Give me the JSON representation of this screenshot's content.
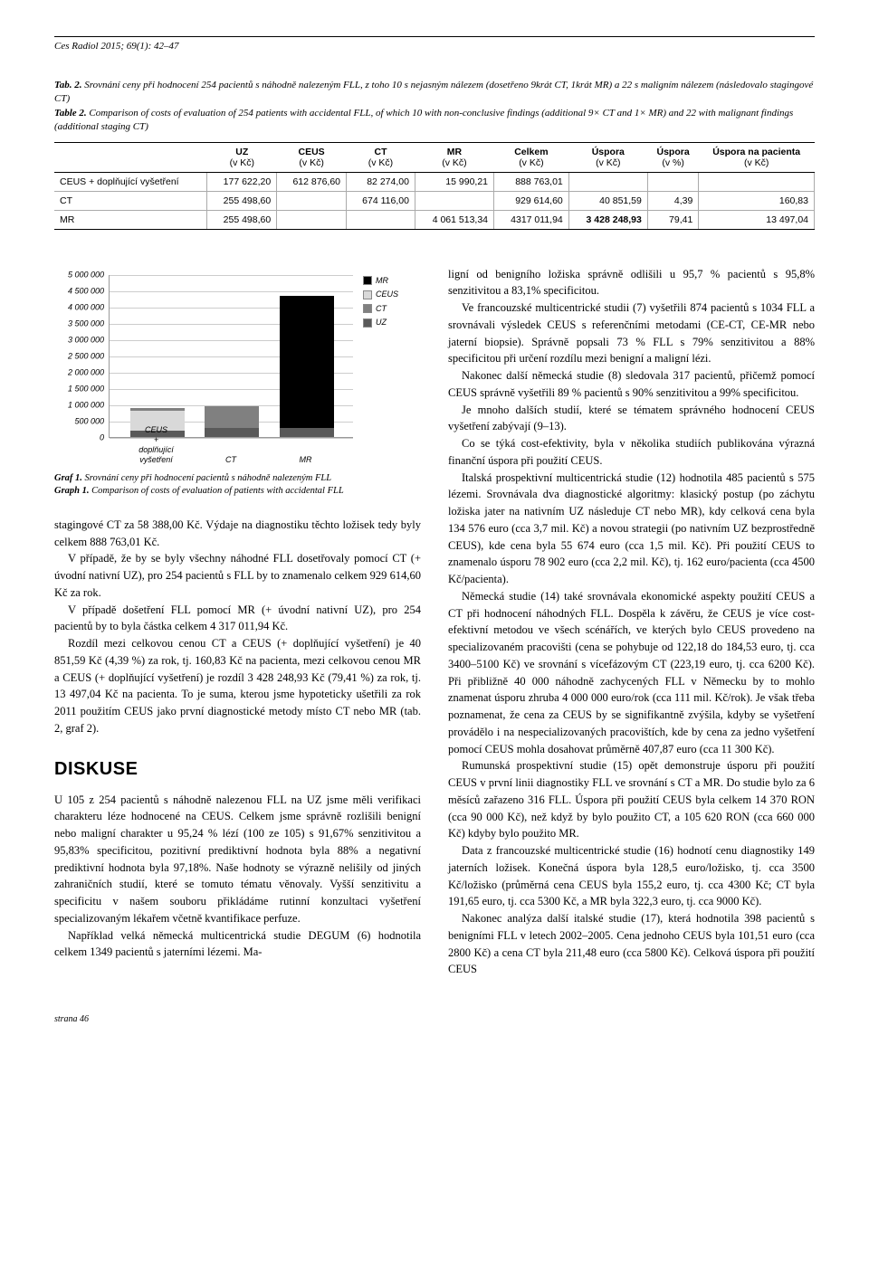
{
  "journal": "Ces Radiol 2015; 69(1): 42–47",
  "table": {
    "cap_cz_label": "Tab. 2.",
    "cap_cz": "Srovnání ceny při hodnocení 254 pacientů s náhodně nalezeným FLL, z toho 10 s nejasným nálezem (dosetřeno 9krát CT, 1krát MR) a 22 s maligním nálezem (následovalo stagingové CT)",
    "cap_en_label": "Table 2.",
    "cap_en": "Comparison of costs of evaluation of 254 patients with accidental FLL, of which 10 with non-conclusive findings (additional 9× CT and 1× MR) and 22 with malignant findings (additional staging CT)",
    "headers": [
      {
        "h": "",
        "sub": ""
      },
      {
        "h": "UZ",
        "sub": "(v Kč)"
      },
      {
        "h": "CEUS",
        "sub": "(v Kč)"
      },
      {
        "h": "CT",
        "sub": "(v Kč)"
      },
      {
        "h": "MR",
        "sub": "(v Kč)"
      },
      {
        "h": "Celkem",
        "sub": "(v Kč)"
      },
      {
        "h": "Úspora",
        "sub": "(v Kč)"
      },
      {
        "h": "Úspora",
        "sub": "(v %)"
      },
      {
        "h": "Úspora na pacienta",
        "sub": "(v Kč)"
      }
    ],
    "rows": [
      [
        "CEUS + doplňující vyšetření",
        "177 622,20",
        "612 876,60",
        "82 274,00",
        "15 990,21",
        "888 763,01",
        "",
        "",
        ""
      ],
      [
        "CT",
        "255 498,60",
        "",
        "674 116,00",
        "",
        "929 614,60",
        "40 851,59",
        "4,39",
        "160,83"
      ],
      [
        "MR",
        "255 498,60",
        "",
        "",
        "4 061 513,34",
        "4317 011,94",
        "3 428 248,93",
        "79,41",
        "13 497,04"
      ]
    ],
    "bold_cells": [
      [
        2,
        6
      ]
    ]
  },
  "chart": {
    "type": "stacked-bar",
    "ymax": 5000000,
    "ytick_step": 500000,
    "y_labels": [
      "0",
      "500 000",
      "1 000 000",
      "1 500 000",
      "2 000 000",
      "2 500 000",
      "3 000 000",
      "3 500 000",
      "4 000 000",
      "4 500 000",
      "5 000 000"
    ],
    "categories": [
      "CEUS\n+\ndoplňující\nvyšetření",
      "CT",
      "MR"
    ],
    "series": [
      "UZ",
      "CT",
      "CEUS",
      "MR"
    ],
    "colors": {
      "MR": "#000000",
      "CEUS": "#d9d9d9",
      "CT": "#808080",
      "UZ": "#595959"
    },
    "data": [
      {
        "UZ": 177622,
        "CEUS": 612877,
        "CT": 82274,
        "MR": 15990
      },
      {
        "UZ": 255499,
        "CEUS": 0,
        "CT": 674116,
        "MR": 0
      },
      {
        "UZ": 255499,
        "CEUS": 0,
        "CT": 0,
        "MR": 4061513
      }
    ],
    "legend_order": [
      "MR",
      "CEUS",
      "CT",
      "UZ"
    ],
    "cap_cz_label": "Graf 1.",
    "cap_cz": "Srovnání ceny při hodnocení pacientů s náhodně nalezeným FLL",
    "cap_en_label": "Graph 1.",
    "cap_en": "Comparison of costs of evaluation of patients with accidental FLL",
    "grid_color": "#cccccc",
    "font_size": 9
  },
  "left_col": {
    "p1": "stagingové CT za 58 388,00 Kč. Výdaje na diagnostiku těchto ložisek tedy byly celkem 888 763,01 Kč.",
    "p2": "V případě, že by se byly všechny náhodné FLL dosetřovaly pomocí CT (+ úvodní nativní UZ), pro 254 pacientů s FLL by to znamenalo celkem 929 614,60 Kč za rok.",
    "p3": "V případě došetření FLL pomocí MR (+ úvodní nativní UZ), pro 254 pacientů by to byla částka celkem 4 317 011,94 Kč.",
    "p4": "Rozdíl mezi celkovou cenou CT a CEUS (+ doplňující vyšetření) je 40 851,59 Kč (4,39 %) za rok, tj. 160,83 Kč na pacienta, mezi celkovou cenou MR a CEUS (+ doplňující vyšetření) je rozdíl 3 428 248,93 Kč (79,41 %) za rok, tj. 13 497,04 Kč na pacienta. To je suma, kterou jsme hypoteticky ušetřili za rok 2011 použitím CEUS jako první diagnostické metody místo CT nebo MR (tab. 2, graf 2).",
    "heading": "DISKUSE",
    "p5": "U 105 z 254 pacientů s náhodně nalezenou FLL na UZ jsme měli verifikaci charakteru léze hodnocené na CEUS. Celkem jsme správně rozlišili benigní nebo maligní charakter u 95,24 % lézí (100 ze 105) s 91,67% senzitivitou a 95,83% specificitou, pozitivní prediktivní hodnota byla 88% a negativní prediktivní hodnota byla 97,18%. Naše hodnoty se výrazně nelišily od jiných zahraničních studií, které se tomuto tématu věnovaly. Vyšší senzitivitu a specificitu v našem souboru přikládáme rutinní konzultaci vyšetření specializovaným lékařem včetně kvantifikace perfuze.",
    "p6": "Například velká německá multicentrická studie DEGUM (6) hodnotila celkem 1349 pacientů s jaterními lézemi. Ma-"
  },
  "right_col": {
    "p1": "ligní od benigního ložiska správně odlišili u 95,7 % pacientů s 95,8% senzitivitou a 83,1% specificitou.",
    "p2": "Ve francouzské multicentrické studii (7) vyšetřili 874 pacientů s 1034 FLL a srovnávali výsledek CEUS s referenčními metodami (CE-CT, CE-MR nebo jaterní biopsie). Správně popsali 73 % FLL s 79% senzitivitou a 88% specificitou při určení rozdílu mezi benigní a maligní lézi.",
    "p3": "Nakonec další německá studie (8) sledovala 317 pacientů, přičemž pomocí CEUS správně vyšetřili 89 % pacientů s 90% senzitivitou a 99% specificitou.",
    "p4": "Je mnoho dalších studií, které se tématem správného hodnocení CEUS vyšetření zabývají (9–13).",
    "p5": "Co se týká cost-efektivity, byla v několika studiích publikována výrazná finanční úspora při použití CEUS.",
    "p6": "Italská prospektivní multicentrická studie (12) hodnotila 485 pacientů s 575 lézemi. Srovnávala dva diagnostické algoritmy: klasický postup (po záchytu ložiska jater na nativním UZ následuje CT nebo MR), kdy celková cena byla 134 576 euro (cca 3,7 mil. Kč) a novou strategii (po nativním UZ bezprostředně CEUS), kde cena byla 55 674 euro (cca 1,5 mil. Kč). Při použití CEUS to znamenalo úsporu 78 902 euro (cca 2,2 mil. Kč), tj. 162 euro/pacienta (cca 4500 Kč/pacienta).",
    "p7": "Německá studie (14) také srovnávala ekonomické aspekty použití CEUS a CT při hodnocení náhodných FLL. Dospěla k závěru, že CEUS je více cost-efektivní metodou ve všech scénářích, ve kterých bylo CEUS provedeno na specializovaném pracovišti (cena se pohybuje od 122,18 do 184,53 euro, tj. cca 3400–5100 Kč) ve srovnání s vícefázovým CT (223,19 euro, tj. cca 6200 Kč). Při přibližně 40 000 náhodně zachycených FLL v Německu by to mohlo znamenat úsporu zhruba 4 000 000 euro/rok (cca 111 mil. Kč/rok). Je však třeba poznamenat, že cena za CEUS by se signifikantně zvýšila, kdyby se vyšetření provádělo i na nespecializovaných pracovištích, kde by cena za jedno vyšetření pomocí CEUS mohla dosahovat průměrně 407,87 euro (cca 11 300 Kč).",
    "p8": "Rumunská prospektivní studie (15) opět demonstruje úsporu při použití CEUS v první linii diagnostiky FLL ve srovnání s CT a MR. Do studie bylo za 6 měsíců zařazeno 316 FLL. Úspora při použití CEUS byla celkem 14 370 RON (cca 90 000 Kč), než když by bylo použito CT, a 105 620 RON (cca 660 000 Kč) kdyby bylo použito MR.",
    "p9": "Data z francouzské multicentrické studie (16) hodnotí cenu diagnostiky 149 jaterních ložisek. Konečná úspora byla 128,5 euro/ložisko, tj. cca 3500 Kč/ložisko (průměrná cena CEUS byla 155,2 euro, tj. cca 4300 Kč; CT byla 191,65 euro, tj. cca 5300 Kč, a MR byla 322,3 euro, tj. cca 9000 Kč).",
    "p10": "Nakonec analýza další italské studie (17), která hodnotila 398 pacientů s benigními FLL v letech 2002–2005. Cena jednoho CEUS byla 101,51 euro (cca 2800 Kč) a cena CT byla 211,48 euro (cca 5800 Kč). Celková úspora při použití CEUS"
  },
  "footer": "strana 46"
}
